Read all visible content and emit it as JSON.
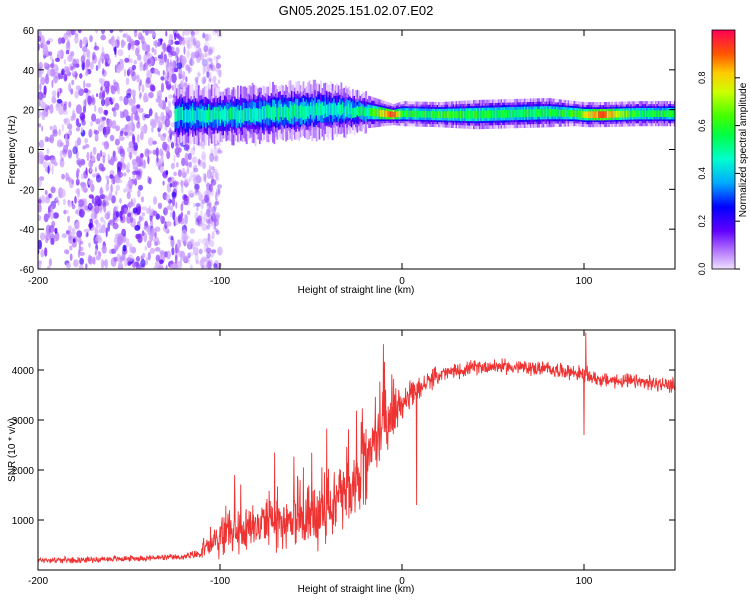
{
  "title": "GN05.2025.151.02.07.E02",
  "colors": {
    "snr_line": "#ee3333",
    "colormap": [
      "#cc99ff",
      "#7a00ff",
      "#0000ff",
      "#00ccff",
      "#00ff88",
      "#00ff00",
      "#ccff00",
      "#ffff00",
      "#ff9900",
      "#ff0000",
      "#ff0066"
    ]
  },
  "chart_data": [
    {
      "type": "heatmap",
      "title": "GN05.2025.151.02.07.E02",
      "xlabel": "Height of straight line (km)",
      "ylabel": "Frequency (Hz)",
      "xlim": [
        -200,
        150
      ],
      "ylim": [
        -60,
        60
      ],
      "xticks": [
        -200,
        -100,
        0,
        100
      ],
      "yticks": [
        60,
        40,
        20,
        0,
        -20,
        -40,
        -60
      ],
      "colorbar": {
        "label": "Normalized spectral amplitude",
        "range": [
          0,
          1
        ],
        "ticks": [
          "0.0",
          "0.2",
          "0.4",
          "0.6",
          "0.8"
        ]
      },
      "noise_region_x": [
        -200,
        -108
      ],
      "band": {
        "x": [
          -120,
          -100,
          -80,
          -60,
          -40,
          -20,
          -5,
          0,
          20,
          40,
          60,
          80,
          95,
          100,
          110,
          130,
          150
        ],
        "center_hz": [
          17,
          17,
          18,
          19,
          20,
          19,
          17.5,
          18,
          17.5,
          17.5,
          18,
          18.5,
          18,
          17.5,
          17.5,
          18,
          18
        ],
        "half_width_hz": [
          6,
          5.5,
          6,
          6,
          5.5,
          4,
          2.5,
          3,
          3,
          3.5,
          3.5,
          3.5,
          3,
          3,
          3,
          3,
          3
        ],
        "peak_amplitude": [
          0.45,
          0.5,
          0.45,
          0.5,
          0.45,
          0.5,
          0.95,
          0.55,
          0.6,
          0.6,
          0.55,
          0.55,
          0.6,
          0.75,
          0.9,
          0.55,
          0.55
        ]
      }
    },
    {
      "type": "line",
      "xlabel": "Height of straight line (km)",
      "ylabel": "SNR (10 * v/v)",
      "xlim": [
        -200,
        150
      ],
      "ylim": [
        0,
        4800
      ],
      "xticks": [
        -200,
        -100,
        0,
        100
      ],
      "yticks": [
        1000,
        2000,
        3000,
        4000
      ],
      "series": [
        {
          "x": [
            -200,
            -180,
            -160,
            -140,
            -120,
            -110,
            -100,
            -90,
            -80,
            -70,
            -60,
            -50,
            -40,
            -30,
            -20,
            -15,
            -10,
            -5,
            0,
            10,
            20,
            30,
            40,
            50,
            60,
            70,
            80,
            90,
            95,
            100,
            105,
            110,
            120,
            130,
            140,
            150
          ],
          "y": [
            200,
            200,
            220,
            240,
            260,
            330,
            650,
            800,
            900,
            950,
            1000,
            1050,
            1250,
            1550,
            2050,
            2450,
            2900,
            3100,
            3300,
            3650,
            3900,
            3980,
            4050,
            4080,
            4060,
            4040,
            4020,
            3980,
            3950,
            3900,
            3850,
            3800,
            3780,
            3760,
            3720,
            3700
          ],
          "noise": [
            60,
            60,
            60,
            60,
            60,
            120,
            400,
            450,
            500,
            550,
            600,
            650,
            700,
            750,
            800,
            800,
            700,
            450,
            350,
            230,
            180,
            150,
            150,
            150,
            150,
            150,
            150,
            150,
            150,
            180,
            150,
            150,
            150,
            150,
            150,
            150
          ],
          "spikes": [
            {
              "x": 101,
              "y": 4750
            },
            {
              "x": 100,
              "y": 2700
            },
            {
              "x": 8,
              "y": 1300
            },
            {
              "x": -92,
              "y": 1900
            },
            {
              "x": -70,
              "y": 2350
            }
          ]
        }
      ]
    }
  ]
}
